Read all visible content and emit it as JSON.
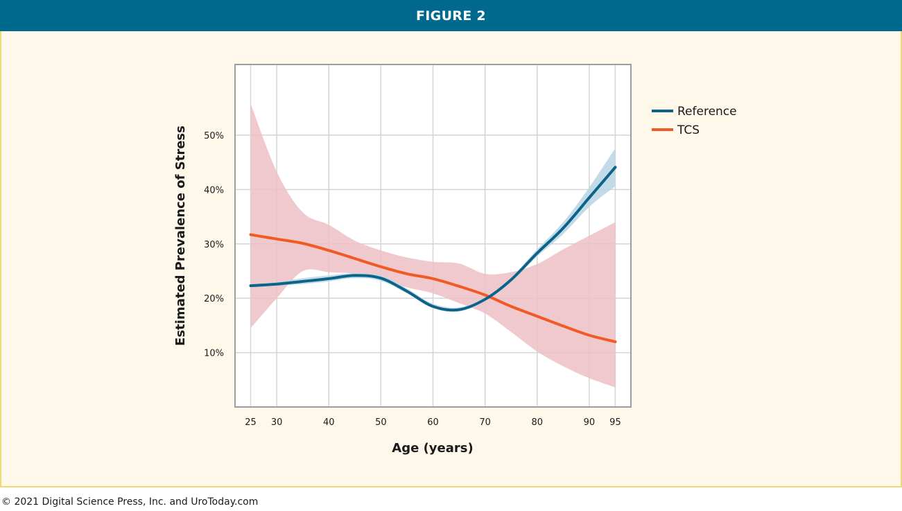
{
  "header": {
    "title": "FIGURE 2"
  },
  "footer": {
    "copyright": "© 2021 Digital Science Press, Inc. and UroToday.com"
  },
  "colors": {
    "header_bg": "#006a8e",
    "panel_bg": "#fef8ea",
    "panel_border": "#f2d873",
    "reference_line": "#0b6488",
    "reference_band": "#bcd6e6",
    "tcs_line": "#f15a24",
    "tcs_band": "#ecbfc4",
    "grid": "#d4d4d4",
    "axis": "#9e9e9e"
  },
  "chart_data": {
    "type": "line",
    "xlabel": "Age (years)",
    "ylabel": "Estimated Prevalence of Stress",
    "xlim": [
      22,
      98
    ],
    "ylim": [
      0,
      63
    ],
    "x_ticks": [
      25,
      30,
      40,
      50,
      60,
      70,
      80,
      90,
      95
    ],
    "y_ticks": [
      10,
      20,
      30,
      40,
      50
    ],
    "y_tick_labels": [
      "10%",
      "20%",
      "30%",
      "40%",
      "50%"
    ],
    "grid": true,
    "legend_position": "right",
    "series": [
      {
        "name": "Reference",
        "x": [
          25,
          30,
          35,
          40,
          45,
          50,
          55,
          60,
          65,
          70,
          75,
          80,
          85,
          90,
          95
        ],
        "y": [
          22.3,
          22.6,
          23.1,
          23.6,
          24.2,
          23.7,
          21.3,
          18.5,
          17.9,
          19.8,
          23.4,
          28.3,
          32.9,
          38.5,
          44.1
        ],
        "lower": [
          22.0,
          22.3,
          22.6,
          23.1,
          23.7,
          23.2,
          20.9,
          18.2,
          17.6,
          19.5,
          23.0,
          27.7,
          31.8,
          36.8,
          40.6
        ],
        "upper": [
          22.6,
          23.0,
          23.7,
          24.2,
          24.6,
          24.2,
          21.8,
          19.0,
          18.3,
          20.1,
          23.8,
          29.0,
          34.0,
          40.4,
          47.6
        ]
      },
      {
        "name": "TCS",
        "x": [
          25,
          30,
          35,
          40,
          45,
          50,
          55,
          60,
          65,
          70,
          75,
          80,
          85,
          90,
          95
        ],
        "y": [
          31.7,
          30.9,
          30.1,
          28.8,
          27.3,
          25.8,
          24.5,
          23.6,
          22.2,
          20.6,
          18.5,
          16.7,
          14.9,
          13.2,
          12.0
        ],
        "lower": [
          14.5,
          20.0,
          25.0,
          24.8,
          24.5,
          23.3,
          22.0,
          20.9,
          19.1,
          17.2,
          13.8,
          10.2,
          7.5,
          5.3,
          3.6
        ],
        "upper": [
          55.8,
          43.3,
          35.8,
          33.5,
          30.6,
          28.8,
          27.5,
          26.7,
          26.4,
          24.5,
          24.8,
          26.3,
          29.0,
          31.5,
          34.0
        ]
      }
    ]
  }
}
